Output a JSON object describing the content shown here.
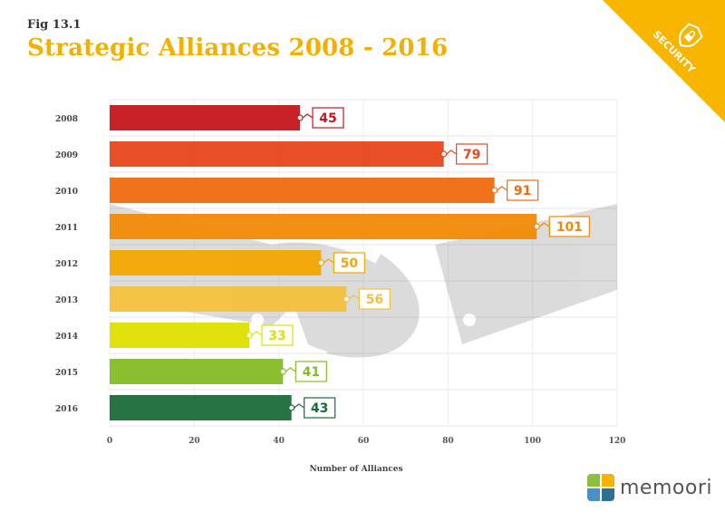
{
  "figure_label": "Fig 13.1",
  "title": "Strategic Alliances 2008 - 2016",
  "badge": {
    "text": "SECURITY",
    "icon": "shield-lock-icon",
    "color": "#f7b500"
  },
  "logo": {
    "text": "memoori",
    "icon": "memoori-logo-icon"
  },
  "chart_data": {
    "type": "bar",
    "orientation": "horizontal",
    "categories": [
      "2008",
      "2009",
      "2010",
      "2011",
      "2012",
      "2013",
      "2014",
      "2015",
      "2016"
    ],
    "values": [
      45,
      79,
      91,
      101,
      50,
      56,
      33,
      41,
      43
    ],
    "colors": [
      "#c4161c",
      "#e8461b",
      "#ef6b0f",
      "#f08a06",
      "#f2a700",
      "#f4c03c",
      "#dfe000",
      "#86bc25",
      "#1b6b3a"
    ],
    "data_labels": [
      "45",
      "79",
      "91",
      "101",
      "50",
      "56",
      "33",
      "41",
      "43"
    ],
    "xlabel": "Number of Alliances",
    "ylabel": "",
    "xlim": [
      0,
      120
    ],
    "xticks": [
      "0",
      "20",
      "40",
      "60",
      "80",
      "100",
      "120"
    ],
    "grid": true,
    "background_image": "handshake"
  }
}
